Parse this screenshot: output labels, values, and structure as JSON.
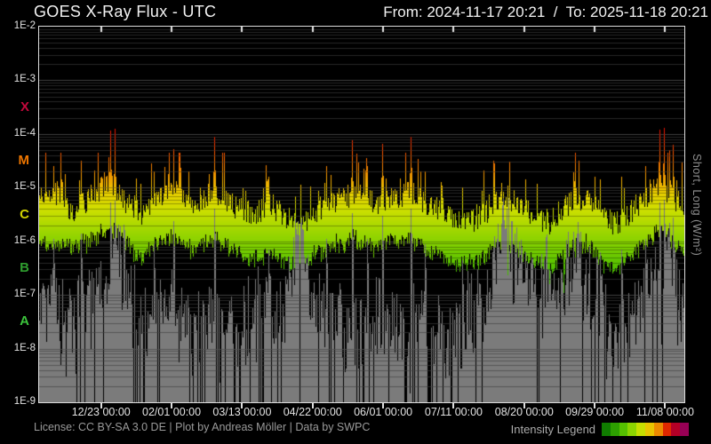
{
  "header": {
    "title": "GOES X-Ray Flux - UTC",
    "range": "From: 2024-11-17 20:21  /  To: 2025-11-18 20:21"
  },
  "footer": {
    "license": "License: CC BY-SA 3.0 DE | Plot by Andreas Möller | Data by SWPC",
    "legend_label": "Intensity Legend"
  },
  "axes": {
    "y_right_label": "Short, Long (W/m²)",
    "y_ticks": [
      {
        "label": "1E-2",
        "log": -2
      },
      {
        "label": "1E-3",
        "log": -3
      },
      {
        "label": "1E-4",
        "log": -4
      },
      {
        "label": "1E-5",
        "log": -5
      },
      {
        "label": "1E-6",
        "log": -6
      },
      {
        "label": "1E-7",
        "log": -7
      },
      {
        "label": "1E-8",
        "log": -8
      },
      {
        "label": "1E-9",
        "log": -9
      }
    ],
    "class_bands": [
      {
        "label": "X",
        "log": -3.5,
        "color": "#c3093c"
      },
      {
        "label": "M",
        "log": -4.5,
        "color": "#ee7600"
      },
      {
        "label": "C",
        "log": -5.5,
        "color": "#d2d400"
      },
      {
        "label": "B",
        "log": -6.5,
        "color": "#2f9e2f"
      },
      {
        "label": "A",
        "log": -7.5,
        "color": "#3cc43c"
      }
    ],
    "x_ticks": [
      {
        "label": "12/23 00:00",
        "day": 35.15
      },
      {
        "label": "02/01 00:00",
        "day": 75.15
      },
      {
        "label": "03/13 00:00",
        "day": 115.15
      },
      {
        "label": "04/22 00:00",
        "day": 155.15
      },
      {
        "label": "06/01 00:00",
        "day": 195.15
      },
      {
        "label": "07/11 00:00",
        "day": 235.15
      },
      {
        "label": "08/20 00:00",
        "day": 275.15
      },
      {
        "label": "09/29 00:00",
        "day": 315.15
      },
      {
        "label": "11/08 00:00",
        "day": 355.15
      }
    ]
  },
  "theme": {
    "background": "#000000",
    "frame": "#dcdcdc",
    "tick": "#e8e8e8",
    "grid_minor": "#383838",
    "grid_major": "#5e5e5e",
    "short_channel_gray": "#7b7b7b",
    "text_muted": "#9a9a9a"
  },
  "legend_colors": [
    "#107c00",
    "#2da000",
    "#55c000",
    "#8cd400",
    "#c6de00",
    "#e8c400",
    "#ec8a00",
    "#e02800",
    "#b30026",
    "#970055"
  ],
  "chart_data": {
    "type": "area",
    "title": "GOES X-Ray Flux - UTC",
    "x_unit": "days since 2024-11-17 20:21 UTC",
    "x_range": [
      0,
      366
    ],
    "y_unit": "log10 flux (W/m²)",
    "y_range": [
      -9,
      -2
    ],
    "grid": "log-minor-and-major",
    "legend_position": "bottom-right",
    "series": [
      {
        "name": "long-channel-daily-max-envelope",
        "points": [
          [
            0,
            -5.2
          ],
          [
            10,
            -5.1
          ],
          [
            18,
            -5.5
          ],
          [
            28,
            -5.2
          ],
          [
            40,
            -4.9
          ],
          [
            50,
            -5.3
          ],
          [
            58,
            -5.55
          ],
          [
            68,
            -5.2
          ],
          [
            76,
            -5.05
          ],
          [
            86,
            -5.4
          ],
          [
            99,
            -5.05
          ],
          [
            110,
            -5.35
          ],
          [
            122,
            -5.5
          ],
          [
            131,
            -5.3
          ],
          [
            140,
            -5.6
          ],
          [
            148,
            -5.75
          ],
          [
            158,
            -5.4
          ],
          [
            168,
            -5.25
          ],
          [
            179,
            -5.1
          ],
          [
            190,
            -5.3
          ],
          [
            199,
            -5.2
          ],
          [
            211,
            -5.1
          ],
          [
            222,
            -5.35
          ],
          [
            232,
            -5.5
          ],
          [
            242,
            -5.7
          ],
          [
            252,
            -5.5
          ],
          [
            262,
            -5.2
          ],
          [
            272,
            -5.3
          ],
          [
            282,
            -5.6
          ],
          [
            290,
            -5.7
          ],
          [
            300,
            -5.3
          ],
          [
            310,
            -5.25
          ],
          [
            318,
            -5.45
          ],
          [
            326,
            -5.7
          ],
          [
            334,
            -5.5
          ],
          [
            342,
            -5.3
          ],
          [
            352,
            -4.9
          ],
          [
            360,
            -5.2
          ],
          [
            366,
            -5.35
          ]
        ]
      },
      {
        "name": "long-channel-daily-min-envelope",
        "points": [
          [
            0,
            -6.0
          ],
          [
            10,
            -6.05
          ],
          [
            18,
            -6.1
          ],
          [
            28,
            -6.0
          ],
          [
            40,
            -5.75
          ],
          [
            50,
            -6.05
          ],
          [
            58,
            -6.3
          ],
          [
            68,
            -6.0
          ],
          [
            76,
            -5.9
          ],
          [
            86,
            -6.15
          ],
          [
            99,
            -5.9
          ],
          [
            110,
            -6.15
          ],
          [
            122,
            -6.3
          ],
          [
            131,
            -6.2
          ],
          [
            140,
            -6.35
          ],
          [
            148,
            -6.45
          ],
          [
            158,
            -6.2
          ],
          [
            168,
            -6.05
          ],
          [
            179,
            -5.95
          ],
          [
            190,
            -6.1
          ],
          [
            199,
            -6.0
          ],
          [
            211,
            -5.95
          ],
          [
            222,
            -6.2
          ],
          [
            232,
            -6.35
          ],
          [
            242,
            -6.45
          ],
          [
            252,
            -6.3
          ],
          [
            262,
            -6.0
          ],
          [
            272,
            -6.15
          ],
          [
            282,
            -6.4
          ],
          [
            290,
            -6.5
          ],
          [
            300,
            -6.1
          ],
          [
            310,
            -6.05
          ],
          [
            318,
            -6.3
          ],
          [
            326,
            -6.55
          ],
          [
            334,
            -6.3
          ],
          [
            342,
            -6.05
          ],
          [
            352,
            -5.8
          ],
          [
            360,
            -6.0
          ],
          [
            366,
            -6.3
          ]
        ]
      },
      {
        "name": "short-channel-top-envelope",
        "points": [
          [
            0,
            -7.0
          ],
          [
            8,
            -6.8
          ],
          [
            16,
            -7.2
          ],
          [
            24,
            -7.0
          ],
          [
            32,
            -6.8
          ],
          [
            38,
            -6.4
          ],
          [
            42,
            -5.8
          ],
          [
            46,
            -5.5
          ],
          [
            50,
            -6.2
          ],
          [
            56,
            -7.2
          ],
          [
            64,
            -7.0
          ],
          [
            72,
            -6.7
          ],
          [
            80,
            -7.1
          ],
          [
            88,
            -7.3
          ],
          [
            96,
            -6.9
          ],
          [
            104,
            -7.2
          ],
          [
            112,
            -7.5
          ],
          [
            120,
            -7.0
          ],
          [
            128,
            -6.8
          ],
          [
            136,
            -7.2
          ],
          [
            141,
            -6.4
          ],
          [
            145,
            -5.9
          ],
          [
            149,
            -5.8
          ],
          [
            153,
            -6.3
          ],
          [
            158,
            -7.0
          ],
          [
            166,
            -7.4
          ],
          [
            174,
            -7.1
          ],
          [
            182,
            -7.3
          ],
          [
            190,
            -7.0
          ],
          [
            198,
            -7.2
          ],
          [
            206,
            -7.4
          ],
          [
            214,
            -7.1
          ],
          [
            222,
            -7.3
          ],
          [
            230,
            -7.6
          ],
          [
            238,
            -7.2
          ],
          [
            246,
            -6.9
          ],
          [
            254,
            -6.6
          ],
          [
            258,
            -6.1
          ],
          [
            262,
            -5.5
          ],
          [
            266,
            -5.4
          ],
          [
            270,
            -6.0
          ],
          [
            276,
            -6.4
          ],
          [
            282,
            -6.7
          ],
          [
            288,
            -6.3
          ],
          [
            294,
            -6.8
          ],
          [
            300,
            -6.2
          ],
          [
            304,
            -5.9
          ],
          [
            308,
            -6.0
          ],
          [
            312,
            -6.3
          ],
          [
            318,
            -6.9
          ],
          [
            326,
            -7.4
          ],
          [
            334,
            -7.0
          ],
          [
            342,
            -6.8
          ],
          [
            348,
            -6.4
          ],
          [
            352,
            -6.0
          ],
          [
            356,
            -5.9
          ],
          [
            360,
            -6.4
          ],
          [
            366,
            -6.9
          ]
        ]
      },
      {
        "name": "activity-level",
        "points": [
          [
            0,
            0.7
          ],
          [
            10,
            0.8
          ],
          [
            20,
            0.5
          ],
          [
            30,
            0.7
          ],
          [
            40,
            0.95
          ],
          [
            50,
            0.6
          ],
          [
            58,
            0.4
          ],
          [
            68,
            0.7
          ],
          [
            78,
            0.85
          ],
          [
            90,
            0.6
          ],
          [
            100,
            0.8
          ],
          [
            110,
            0.5
          ],
          [
            120,
            0.4
          ],
          [
            130,
            0.5
          ],
          [
            141,
            0.35
          ],
          [
            150,
            0.3
          ],
          [
            160,
            0.5
          ],
          [
            170,
            0.7
          ],
          [
            180,
            0.85
          ],
          [
            190,
            0.7
          ],
          [
            200,
            0.8
          ],
          [
            212,
            0.8
          ],
          [
            222,
            0.5
          ],
          [
            232,
            0.4
          ],
          [
            242,
            0.3
          ],
          [
            252,
            0.5
          ],
          [
            262,
            0.75
          ],
          [
            272,
            0.6
          ],
          [
            282,
            0.4
          ],
          [
            292,
            0.35
          ],
          [
            302,
            0.7
          ],
          [
            312,
            0.6
          ],
          [
            322,
            0.35
          ],
          [
            332,
            0.5
          ],
          [
            342,
            0.7
          ],
          [
            352,
            0.95
          ],
          [
            360,
            0.7
          ],
          [
            366,
            0.6
          ]
        ]
      }
    ],
    "flares": [
      [
        8,
        -4.6
      ],
      [
        23.5,
        -4.5
      ],
      [
        40.2,
        -3.93
      ],
      [
        42.7,
        -3.9
      ],
      [
        65,
        -4.7
      ],
      [
        75.9,
        -4.28
      ],
      [
        99.5,
        -4.05
      ],
      [
        130,
        -4.8
      ],
      [
        148,
        -4.95
      ],
      [
        163,
        -4.6
      ],
      [
        177.5,
        -4.12
      ],
      [
        186,
        -4.6
      ],
      [
        194.6,
        -4.18
      ],
      [
        210.6,
        -4.05
      ],
      [
        219,
        -4.7
      ],
      [
        240,
        -5.0
      ],
      [
        258,
        -4.55
      ],
      [
        276,
        -4.85
      ],
      [
        306,
        -4.5
      ],
      [
        318,
        -4.85
      ],
      [
        330,
        -4.8
      ],
      [
        344,
        -4.6
      ],
      [
        351.9,
        -3.92
      ],
      [
        354.4,
        -3.88
      ],
      [
        357.2,
        -4.3
      ],
      [
        359.4,
        -4.2
      ]
    ],
    "artifact_drops": [
      [
        265.5,
        -7.35
      ],
      [
        275.7,
        -6.7
      ],
      [
        288.9,
        -7.45
      ],
      [
        297.5,
        -6.95
      ]
    ],
    "colormap": [
      [
        -7.2,
        "#2f9e00"
      ],
      [
        -6.6,
        "#46bc00"
      ],
      [
        -6.1,
        "#7ecf00"
      ],
      [
        -5.75,
        "#a6d800"
      ],
      [
        -5.4,
        "#cfdf00"
      ],
      [
        -5.1,
        "#e9cf00"
      ],
      [
        -4.85,
        "#f0a400"
      ],
      [
        -4.55,
        "#f17400"
      ],
      [
        -4.25,
        "#ee4000"
      ],
      [
        -3.95,
        "#e41400"
      ],
      [
        -3.5,
        "#c6001c"
      ],
      [
        -3.0,
        "#ab0040"
      ],
      [
        -2.4,
        "#8f0060"
      ]
    ]
  }
}
